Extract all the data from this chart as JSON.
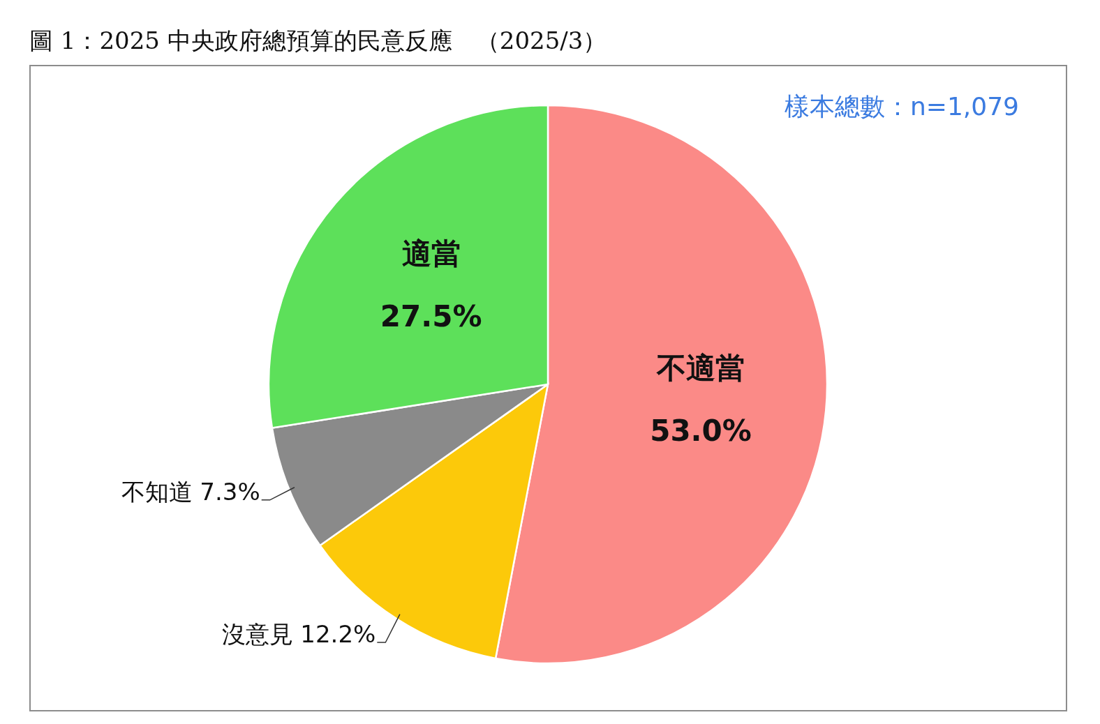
{
  "chart_data": {
    "type": "pie",
    "title": "圖 1：2025 中央政府總預算的民意反應　（2025/3）",
    "categories": [
      "不適當",
      "沒意見",
      "不知道",
      "適當"
    ],
    "values": [
      53.0,
      12.2,
      7.3,
      27.5
    ],
    "colors": [
      "#fb8a87",
      "#fcc90a",
      "#8a8a8a",
      "#5de05a"
    ],
    "value_labels": [
      "53.0%",
      "12.2%",
      "7.3%",
      "27.5%"
    ],
    "annotations": [
      "樣本總數：n=1,079"
    ]
  }
}
